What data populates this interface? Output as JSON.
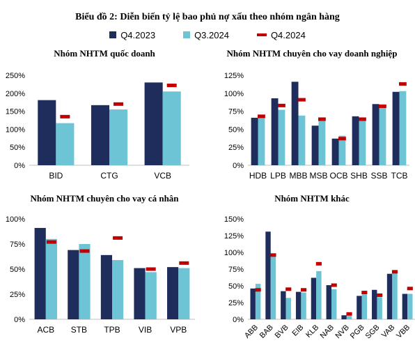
{
  "title": "Biểu đồ 2: Diễn biến tỷ lệ bao phủ nợ xấu theo nhóm ngân hàng",
  "legend": [
    {
      "label": "Q4.2023",
      "color": "#1f2d5c",
      "kind": "box"
    },
    {
      "label": "Q3.2024",
      "color": "#6cc4d4",
      "kind": "box"
    },
    {
      "label": "Q4.2024",
      "color": "#c00000",
      "kind": "line"
    }
  ],
  "chart_data": [
    {
      "type": "bar",
      "title": "Nhóm NHTM quốc doanh",
      "categories": [
        "BID",
        "CTG",
        "VCB"
      ],
      "ylim": [
        0,
        250
      ],
      "yticks": [
        "0%",
        "50%",
        "100%",
        "150%",
        "200%",
        "250%"
      ],
      "series": [
        {
          "name": "Q4.2023",
          "values": [
            181,
            167,
            230
          ]
        },
        {
          "name": "Q3.2024",
          "values": [
            117,
            155,
            205
          ]
        },
        {
          "name": "Q4.2024",
          "values": [
            135,
            170,
            222
          ]
        }
      ]
    },
    {
      "type": "bar",
      "title": "Nhóm NHTM chuyên cho vay doanh nghiệp",
      "categories": [
        "HDB",
        "LPB",
        "MBB",
        "MSB",
        "OCB",
        "SHB",
        "SSB",
        "TCB"
      ],
      "ylim": [
        0,
        125
      ],
      "yticks": [
        "0%",
        "25%",
        "50%",
        "75%",
        "100%",
        "125%"
      ],
      "series": [
        {
          "name": "Q4.2023",
          "values": [
            66,
            93,
            116,
            55,
            37,
            68,
            85,
            102
          ]
        },
        {
          "name": "Q3.2024",
          "values": [
            67,
            77,
            69,
            62,
            41,
            63,
            84,
            103
          ]
        },
        {
          "name": "Q4.2024",
          "values": [
            68,
            83,
            91,
            64,
            37,
            64,
            82,
            113
          ]
        }
      ]
    },
    {
      "type": "bar",
      "title": "Nhóm NHTM chuyên cho vay cá nhân",
      "categories": [
        "ACB",
        "STB",
        "TPB",
        "VIB",
        "VPB"
      ],
      "ylim": [
        0,
        100
      ],
      "yticks": [
        "0%",
        "25%",
        "50%",
        "75%",
        "100%"
      ],
      "series": [
        {
          "name": "Q4.2023",
          "values": [
            91,
            69,
            64,
            51,
            52
          ]
        },
        {
          "name": "Q3.2024",
          "values": [
            80,
            75,
            59,
            47,
            51
          ]
        },
        {
          "name": "Q4.2024",
          "values": [
            77,
            68,
            81,
            50,
            56
          ]
        }
      ]
    },
    {
      "type": "bar",
      "title": "Nhóm NHTM khác",
      "categories": [
        "ABB",
        "BAB",
        "BVB",
        "EIB",
        "KLB",
        "NAB",
        "NVB",
        "PGB",
        "SGB",
        "VAB",
        "VBB"
      ],
      "ylim": [
        0,
        150
      ],
      "yticks": [
        "0%",
        "25%",
        "50%",
        "75%",
        "100%",
        "125%",
        "150%"
      ],
      "series": [
        {
          "name": "Q4.2023",
          "values": [
            46,
            131,
            42,
            41,
            62,
            51,
            6,
            35,
            44,
            68,
            38
          ]
        },
        {
          "name": "Q3.2024",
          "values": [
            53,
            95,
            32,
            40,
            72,
            45,
            5,
            37,
            33,
            73,
            38
          ]
        },
        {
          "name": "Q4.2024",
          "values": [
            44,
            96,
            45,
            44,
            83,
            51,
            8,
            40,
            36,
            71,
            46
          ]
        }
      ]
    }
  ]
}
